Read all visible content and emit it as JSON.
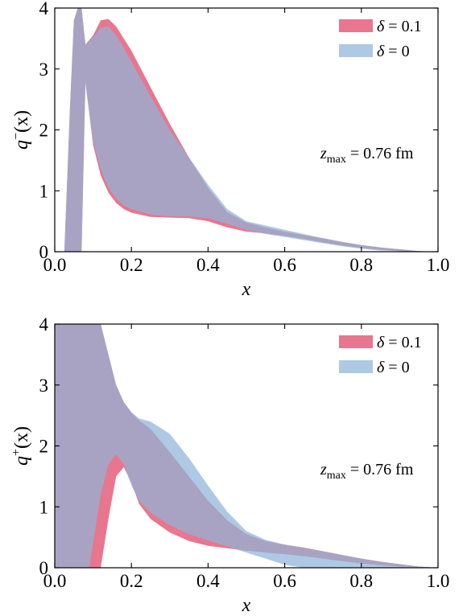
{
  "chart_data": [
    {
      "type": "area",
      "xlabel": "x",
      "ylabel": "q−(x)",
      "xlim": [
        0.0,
        1.0
      ],
      "ylim": [
        0,
        4
      ],
      "x_ticks": [
        "0.0",
        "0.2",
        "0.4",
        "0.6",
        "0.8",
        "1.0"
      ],
      "y_ticks": [
        "0",
        "1",
        "2",
        "3",
        "4"
      ],
      "annotation": "zmax = 0.76 fm",
      "legend_position": "top-right",
      "series": [
        {
          "name": "δ = 0.1",
          "color": "#e8768e",
          "x": [
            0.025,
            0.03,
            0.04,
            0.05,
            0.06,
            0.07,
            0.08,
            0.1,
            0.12,
            0.14,
            0.16,
            0.18,
            0.2,
            0.25,
            0.3,
            0.35,
            0.4,
            0.45,
            0.5,
            0.55,
            0.6,
            0.65,
            0.7,
            0.75,
            0.8,
            0.85,
            0.9,
            0.95,
            1.0
          ],
          "lower": [
            0.0,
            0.0,
            0.0,
            0.0,
            0.0,
            0.0,
            2.8,
            1.75,
            1.25,
            0.97,
            0.8,
            0.7,
            0.64,
            0.57,
            0.56,
            0.55,
            0.5,
            0.4,
            0.33,
            0.3,
            0.26,
            0.21,
            0.15,
            0.1,
            0.06,
            0.03,
            0.01,
            0.0,
            0.0
          ],
          "upper": [
            0.0,
            0.8,
            2.4,
            3.8,
            4.0,
            4.0,
            3.4,
            3.55,
            3.8,
            3.82,
            3.7,
            3.5,
            3.3,
            2.7,
            2.1,
            1.55,
            1.05,
            0.65,
            0.48,
            0.4,
            0.33,
            0.27,
            0.22,
            0.16,
            0.11,
            0.07,
            0.04,
            0.01,
            0.0
          ]
        },
        {
          "name": "δ = 0",
          "color": "#8fb4d8",
          "x": [
            0.025,
            0.03,
            0.04,
            0.05,
            0.06,
            0.07,
            0.08,
            0.1,
            0.12,
            0.14,
            0.16,
            0.18,
            0.2,
            0.25,
            0.3,
            0.35,
            0.4,
            0.45,
            0.5,
            0.55,
            0.6,
            0.65,
            0.7,
            0.75,
            0.8,
            0.85,
            0.9,
            0.95,
            1.0
          ],
          "lower": [
            0.0,
            0.0,
            0.0,
            0.0,
            0.0,
            0.0,
            2.75,
            1.8,
            1.35,
            1.05,
            0.87,
            0.76,
            0.7,
            0.61,
            0.58,
            0.58,
            0.55,
            0.46,
            0.36,
            0.29,
            0.24,
            0.19,
            0.14,
            0.09,
            0.05,
            0.02,
            0.01,
            0.0,
            0.0
          ],
          "upper": [
            0.0,
            0.8,
            2.4,
            3.8,
            4.0,
            4.0,
            3.4,
            3.52,
            3.68,
            3.7,
            3.55,
            3.35,
            3.12,
            2.55,
            2.0,
            1.55,
            1.1,
            0.7,
            0.5,
            0.43,
            0.36,
            0.29,
            0.22,
            0.16,
            0.11,
            0.07,
            0.04,
            0.01,
            0.0
          ]
        }
      ]
    },
    {
      "type": "area",
      "xlabel": "x",
      "ylabel": "q+(x)",
      "xlim": [
        0.0,
        1.0
      ],
      "ylim": [
        0,
        4
      ],
      "x_ticks": [
        "0.0",
        "0.2",
        "0.4",
        "0.6",
        "0.8",
        "1.0"
      ],
      "y_ticks": [
        "0",
        "1",
        "2",
        "3",
        "4"
      ],
      "annotation": "zmax = 0.76 fm",
      "legend_position": "top-right",
      "series": [
        {
          "name": "δ = 0.1",
          "color": "#e8768e",
          "x": [
            0.0,
            0.02,
            0.04,
            0.06,
            0.08,
            0.1,
            0.12,
            0.14,
            0.16,
            0.18,
            0.2,
            0.22,
            0.25,
            0.3,
            0.35,
            0.4,
            0.45,
            0.5,
            0.55,
            0.6,
            0.65,
            0.7,
            0.75,
            0.8,
            0.85,
            0.9,
            0.95,
            1.0
          ],
          "lower": [
            0.0,
            0.0,
            0.0,
            0.0,
            0.0,
            0.0,
            0.0,
            0.8,
            1.5,
            1.65,
            1.4,
            1.05,
            0.8,
            0.58,
            0.44,
            0.36,
            0.32,
            0.28,
            0.25,
            0.22,
            0.19,
            0.15,
            0.11,
            0.07,
            0.04,
            0.02,
            0.01,
            0.0
          ],
          "upper": [
            4.0,
            4.0,
            4.0,
            4.0,
            4.0,
            4.0,
            4.0,
            3.5,
            3.0,
            2.72,
            2.55,
            2.42,
            2.28,
            1.9,
            1.5,
            1.1,
            0.78,
            0.55,
            0.44,
            0.38,
            0.33,
            0.27,
            0.21,
            0.15,
            0.1,
            0.06,
            0.02,
            0.0
          ]
        },
        {
          "name": "δ = 0",
          "color": "#8fb4d8",
          "x": [
            0.0,
            0.02,
            0.04,
            0.06,
            0.08,
            0.09,
            0.1,
            0.12,
            0.14,
            0.16,
            0.18,
            0.2,
            0.22,
            0.25,
            0.3,
            0.35,
            0.4,
            0.45,
            0.5,
            0.55,
            0.6,
            0.65,
            0.7,
            0.75,
            0.8,
            0.85,
            0.9,
            0.95,
            1.0
          ],
          "lower": [
            0.0,
            0.0,
            0.0,
            0.0,
            0.0,
            0.0,
            0.4,
            1.2,
            1.7,
            1.86,
            1.7,
            1.35,
            1.1,
            0.9,
            0.7,
            0.55,
            0.45,
            0.35,
            0.25,
            0.15,
            0.05,
            0.0,
            0.0,
            0.0,
            0.0,
            0.0,
            0.0,
            0.0,
            0.0
          ],
          "upper": [
            4.0,
            4.0,
            4.0,
            4.0,
            4.0,
            4.0,
            4.0,
            4.0,
            3.5,
            3.0,
            2.72,
            2.55,
            2.45,
            2.4,
            2.2,
            1.8,
            1.35,
            0.92,
            0.6,
            0.46,
            0.38,
            0.32,
            0.27,
            0.21,
            0.15,
            0.1,
            0.06,
            0.02,
            0.0
          ]
        }
      ]
    }
  ]
}
